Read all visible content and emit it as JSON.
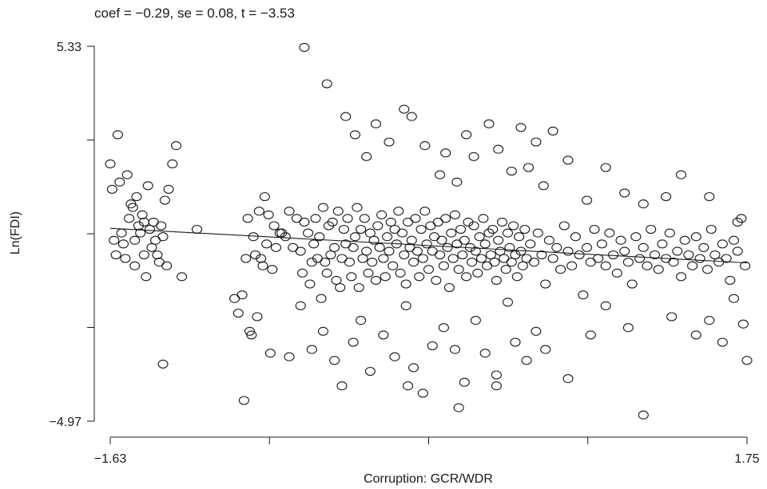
{
  "chart_data": {
    "type": "scatter",
    "title": "coef = −0.29, se = 0.08, t = −3.53",
    "xlabel": "Corruption: GCR/WDR",
    "ylabel": "Ln(FDI)",
    "x_tick_labels": [
      "−1.63",
      "1.75"
    ],
    "y_tick_labels": [
      "5.33",
      "−4.97"
    ],
    "xlim": [
      -1.63,
      1.75
    ],
    "ylim": [
      -4.97,
      5.33
    ],
    "x_ticks": [
      -1.63,
      -0.785,
      0.06,
      0.905,
      1.75
    ],
    "y_ticks": [
      5.33,
      2.755,
      0.18,
      -2.395,
      -4.97
    ],
    "grid": false,
    "fit_line": {
      "x": [
        -1.63,
        1.75
      ],
      "y": [
        0.33,
        -0.62
      ]
    },
    "points": [
      [
        -1.63,
        2.1
      ],
      [
        -1.62,
        1.4
      ],
      [
        -1.61,
        0.0
      ],
      [
        -1.6,
        -0.4
      ],
      [
        -1.59,
        2.9
      ],
      [
        -1.58,
        1.6
      ],
      [
        -1.57,
        0.2
      ],
      [
        -1.56,
        -0.1
      ],
      [
        -1.55,
        -0.5
      ],
      [
        -1.54,
        1.8
      ],
      [
        -1.53,
        0.6
      ],
      [
        -1.52,
        1.0
      ],
      [
        -1.51,
        0.9
      ],
      [
        -1.5,
        0.0
      ],
      [
        -1.5,
        -0.7
      ],
      [
        -1.49,
        1.2
      ],
      [
        -1.48,
        0.4
      ],
      [
        -1.47,
        0.2
      ],
      [
        -1.46,
        0.7
      ],
      [
        -1.45,
        0.5
      ],
      [
        -1.45,
        -0.4
      ],
      [
        -1.44,
        -1.0
      ],
      [
        -1.43,
        1.5
      ],
      [
        -1.42,
        0.3
      ],
      [
        -1.41,
        -0.2
      ],
      [
        -1.4,
        0.5
      ],
      [
        -1.39,
        0.0
      ],
      [
        -1.38,
        -0.4
      ],
      [
        -1.37,
        -0.6
      ],
      [
        -1.36,
        0.4
      ],
      [
        -1.35,
        0.1
      ],
      [
        -1.34,
        1.1
      ],
      [
        -1.33,
        -0.7
      ],
      [
        -1.32,
        1.4
      ],
      [
        -1.3,
        2.1
      ],
      [
        -1.28,
        2.6
      ],
      [
        -1.25,
        -1.0
      ],
      [
        -1.17,
        0.3
      ],
      [
        -0.97,
        -1.6
      ],
      [
        -0.95,
        -2.0
      ],
      [
        -0.93,
        -1.5
      ],
      [
        -0.92,
        -4.4
      ],
      [
        -0.91,
        -0.5
      ],
      [
        -0.9,
        0.6
      ],
      [
        -0.89,
        -2.5
      ],
      [
        -0.88,
        -2.6
      ],
      [
        -0.87,
        0.1
      ],
      [
        -0.86,
        -0.4
      ],
      [
        -0.85,
        -2.1
      ],
      [
        -0.84,
        0.8
      ],
      [
        -0.83,
        -0.5
      ],
      [
        -0.82,
        -0.7
      ],
      [
        -0.81,
        1.2
      ],
      [
        -0.8,
        -0.1
      ],
      [
        -0.79,
        0.7
      ],
      [
        -0.78,
        -3.1
      ],
      [
        -0.77,
        -0.8
      ],
      [
        -0.76,
        0.4
      ],
      [
        -0.75,
        -0.2
      ],
      [
        -0.73,
        0.2
      ],
      [
        -0.72,
        0.2
      ],
      [
        -0.7,
        0.1
      ],
      [
        -0.68,
        0.8
      ],
      [
        -0.66,
        -0.2
      ],
      [
        -0.64,
        0.6
      ],
      [
        -0.62,
        -0.3
      ],
      [
        -0.61,
        -0.9
      ],
      [
        -0.6,
        0.5
      ],
      [
        -0.58,
        0.2
      ],
      [
        -0.57,
        -1.2
      ],
      [
        -0.56,
        -0.6
      ],
      [
        -0.55,
        -0.1
      ],
      [
        -0.54,
        0.6
      ],
      [
        -0.53,
        -0.5
      ],
      [
        -0.52,
        0.1
      ],
      [
        -0.51,
        -1.6
      ],
      [
        -0.5,
        0.9
      ],
      [
        -0.49,
        -0.6
      ],
      [
        -0.48,
        -0.9
      ],
      [
        -0.47,
        0.4
      ],
      [
        -0.46,
        -0.4
      ],
      [
        -0.45,
        0.5
      ],
      [
        -0.44,
        -0.2
      ],
      [
        -0.43,
        -1.1
      ],
      [
        -0.42,
        0.8
      ],
      [
        -0.41,
        -1.3
      ],
      [
        -0.4,
        -0.5
      ],
      [
        -0.39,
        0.3
      ],
      [
        -0.38,
        -0.1
      ],
      [
        -0.37,
        0.6
      ],
      [
        -0.36,
        -0.6
      ],
      [
        -0.35,
        -1.0
      ],
      [
        -0.34,
        -0.2
      ],
      [
        -0.33,
        0.1
      ],
      [
        -0.32,
        0.9
      ],
      [
        -0.31,
        -1.3
      ],
      [
        -0.3,
        0.3
      ],
      [
        -0.29,
        -0.5
      ],
      [
        -0.28,
        0.6
      ],
      [
        -0.27,
        -0.3
      ],
      [
        -0.26,
        -0.9
      ],
      [
        -0.25,
        0.2
      ],
      [
        -0.24,
        -0.6
      ],
      [
        -0.23,
        0.0
      ],
      [
        -0.22,
        -1.1
      ],
      [
        -0.21,
        0.4
      ],
      [
        -0.2,
        -0.2
      ],
      [
        -0.19,
        0.7
      ],
      [
        -0.18,
        -0.5
      ],
      [
        -0.17,
        -1.0
      ],
      [
        -0.16,
        0.1
      ],
      [
        -0.15,
        -0.3
      ],
      [
        -0.14,
        0.5
      ],
      [
        -0.13,
        -0.7
      ],
      [
        -0.12,
        0.3
      ],
      [
        -0.11,
        -0.1
      ],
      [
        -0.1,
        0.8
      ],
      [
        -0.09,
        -0.9
      ],
      [
        -0.08,
        0.2
      ],
      [
        -0.07,
        -0.4
      ],
      [
        -0.06,
        -1.2
      ],
      [
        -0.05,
        0.5
      ],
      [
        -0.04,
        -0.2
      ],
      [
        -0.03,
        0.0
      ],
      [
        -0.02,
        -0.6
      ],
      [
        -0.01,
        0.6
      ],
      [
        0.0,
        -0.3
      ],
      [
        0.01,
        -1.0
      ],
      [
        0.02,
        0.3
      ],
      [
        0.03,
        -0.5
      ],
      [
        0.04,
        0.8
      ],
      [
        0.05,
        -0.1
      ],
      [
        0.06,
        -0.8
      ],
      [
        0.07,
        0.4
      ],
      [
        0.08,
        -0.3
      ],
      [
        0.09,
        0.1
      ],
      [
        0.1,
        -1.1
      ],
      [
        0.11,
        0.5
      ],
      [
        0.12,
        -0.4
      ],
      [
        0.13,
        0.0
      ],
      [
        0.14,
        -0.7
      ],
      [
        0.15,
        0.6
      ],
      [
        0.16,
        -0.2
      ],
      [
        0.17,
        -1.3
      ],
      [
        0.18,
        0.2
      ],
      [
        0.19,
        -0.5
      ],
      [
        0.2,
        0.7
      ],
      [
        0.21,
        -0.1
      ],
      [
        0.22,
        -0.8
      ],
      [
        0.23,
        0.3
      ],
      [
        0.24,
        -0.4
      ],
      [
        0.25,
        0.0
      ],
      [
        0.26,
        -1.0
      ],
      [
        0.27,
        0.5
      ],
      [
        0.28,
        -0.2
      ],
      [
        0.29,
        -0.6
      ],
      [
        0.3,
        0.4
      ],
      [
        0.31,
        -0.3
      ],
      [
        0.32,
        -0.9
      ],
      [
        0.33,
        0.1
      ],
      [
        0.34,
        -0.5
      ],
      [
        0.35,
        0.6
      ],
      [
        0.36,
        -0.1
      ],
      [
        0.37,
        -0.7
      ],
      [
        0.38,
        0.2
      ],
      [
        0.39,
        -0.4
      ],
      [
        0.4,
        0.3
      ],
      [
        0.41,
        -0.6
      ],
      [
        0.42,
        -1.1
      ],
      [
        0.43,
        0.0
      ],
      [
        0.44,
        -0.3
      ],
      [
        0.45,
        0.5
      ],
      [
        0.46,
        -0.5
      ],
      [
        0.47,
        -0.8
      ],
      [
        0.48,
        0.2
      ],
      [
        0.49,
        -0.2
      ],
      [
        0.5,
        -0.6
      ],
      [
        0.51,
        0.4
      ],
      [
        0.52,
        -0.4
      ],
      [
        0.53,
        -1.0
      ],
      [
        0.54,
        0.1
      ],
      [
        0.55,
        -0.3
      ],
      [
        0.56,
        -0.7
      ],
      [
        0.57,
        0.3
      ],
      [
        0.58,
        -0.5
      ],
      [
        0.6,
        -0.1
      ],
      [
        0.62,
        -0.6
      ],
      [
        0.64,
        0.2
      ],
      [
        0.66,
        -0.4
      ],
      [
        0.68,
        -1.2
      ],
      [
        0.7,
        0.0
      ],
      [
        0.72,
        -0.5
      ],
      [
        0.74,
        -0.2
      ],
      [
        0.76,
        -0.8
      ],
      [
        0.78,
        0.4
      ],
      [
        0.8,
        -0.3
      ],
      [
        0.82,
        -0.7
      ],
      [
        0.84,
        0.1
      ],
      [
        0.86,
        -0.4
      ],
      [
        0.88,
        -1.5
      ],
      [
        0.9,
        -0.2
      ],
      [
        0.92,
        -0.6
      ],
      [
        0.94,
        0.3
      ],
      [
        0.96,
        -0.5
      ],
      [
        0.98,
        -0.1
      ],
      [
        1.0,
        -0.7
      ],
      [
        1.02,
        0.2
      ],
      [
        1.04,
        -0.4
      ],
      [
        1.06,
        -0.9
      ],
      [
        1.08,
        0.0
      ],
      [
        1.1,
        -0.3
      ],
      [
        1.12,
        -0.6
      ],
      [
        1.14,
        -1.2
      ],
      [
        1.16,
        0.1
      ],
      [
        1.18,
        -0.5
      ],
      [
        1.2,
        -0.2
      ],
      [
        1.22,
        -0.7
      ],
      [
        1.24,
        0.3
      ],
      [
        1.26,
        -0.4
      ],
      [
        1.28,
        -0.8
      ],
      [
        1.3,
        -0.1
      ],
      [
        1.32,
        -0.5
      ],
      [
        1.34,
        0.2
      ],
      [
        1.36,
        -0.6
      ],
      [
        1.38,
        -0.3
      ],
      [
        1.4,
        -1.0
      ],
      [
        1.42,
        0.0
      ],
      [
        1.44,
        -0.4
      ],
      [
        1.46,
        -0.7
      ],
      [
        1.48,
        0.1
      ],
      [
        1.5,
        -0.5
      ],
      [
        1.52,
        -0.2
      ],
      [
        1.54,
        -0.8
      ],
      [
        1.56,
        0.3
      ],
      [
        1.58,
        -0.4
      ],
      [
        1.6,
        -0.6
      ],
      [
        1.62,
        -0.1
      ],
      [
        1.64,
        -0.5
      ],
      [
        1.66,
        -1.1
      ],
      [
        1.68,
        0.0
      ],
      [
        1.7,
        -0.3
      ],
      [
        1.72,
        0.6
      ],
      [
        1.74,
        -0.7
      ],
      [
        -0.6,
        5.3
      ],
      [
        -0.48,
        4.3
      ],
      [
        -0.38,
        3.4
      ],
      [
        -0.33,
        2.9
      ],
      [
        -0.27,
        2.3
      ],
      [
        -0.22,
        3.2
      ],
      [
        -0.15,
        2.7
      ],
      [
        -0.07,
        3.6
      ],
      [
        -0.03,
        3.4
      ],
      [
        0.04,
        2.6
      ],
      [
        0.12,
        1.8
      ],
      [
        0.15,
        2.4
      ],
      [
        0.21,
        1.6
      ],
      [
        0.26,
        2.9
      ],
      [
        0.3,
        2.3
      ],
      [
        0.38,
        3.2
      ],
      [
        0.43,
        2.5
      ],
      [
        0.5,
        1.9
      ],
      [
        0.55,
        3.1
      ],
      [
        0.59,
        2.0
      ],
      [
        0.63,
        2.7
      ],
      [
        0.67,
        1.5
      ],
      [
        0.72,
        3.0
      ],
      [
        0.8,
        2.2
      ],
      [
        0.9,
        1.1
      ],
      [
        1.0,
        2.0
      ],
      [
        1.1,
        1.3
      ],
      [
        1.2,
        1.0
      ],
      [
        1.32,
        1.2
      ],
      [
        1.4,
        1.8
      ],
      [
        1.55,
        1.2
      ],
      [
        1.7,
        0.5
      ],
      [
        -0.62,
        -1.8
      ],
      [
        -0.56,
        -3.0
      ],
      [
        -0.5,
        -2.5
      ],
      [
        -0.44,
        -3.3
      ],
      [
        -0.4,
        -4.0
      ],
      [
        -0.34,
        -2.8
      ],
      [
        -0.3,
        -2.2
      ],
      [
        -0.25,
        -3.6
      ],
      [
        -0.18,
        -2.6
      ],
      [
        -0.12,
        -3.2
      ],
      [
        -0.06,
        -1.8
      ],
      [
        -0.02,
        -3.5
      ],
      [
        0.03,
        -4.2
      ],
      [
        0.08,
        -2.9
      ],
      [
        0.14,
        -2.4
      ],
      [
        0.2,
        -3.0
      ],
      [
        0.25,
        -3.9
      ],
      [
        0.31,
        -2.2
      ],
      [
        0.36,
        -3.1
      ],
      [
        0.42,
        -3.7
      ],
      [
        0.48,
        -1.7
      ],
      [
        0.52,
        -2.8
      ],
      [
        0.58,
        -3.3
      ],
      [
        0.63,
        -2.5
      ],
      [
        0.68,
        -3.0
      ],
      [
        0.8,
        -3.8
      ],
      [
        0.92,
        -2.6
      ],
      [
        1.0,
        -1.8
      ],
      [
        1.12,
        -2.4
      ],
      [
        1.2,
        -4.8
      ],
      [
        1.35,
        -2.1
      ],
      [
        1.48,
        -2.6
      ],
      [
        1.55,
        -2.2
      ],
      [
        1.62,
        -2.8
      ],
      [
        1.68,
        -1.6
      ],
      [
        1.73,
        -2.3
      ],
      [
        1.75,
        -3.3
      ],
      [
        -0.05,
        -4.0
      ],
      [
        0.22,
        -4.6
      ],
      [
        0.42,
        -4.0
      ],
      [
        -0.68,
        -3.2
      ],
      [
        -1.35,
        -3.4
      ]
    ]
  }
}
